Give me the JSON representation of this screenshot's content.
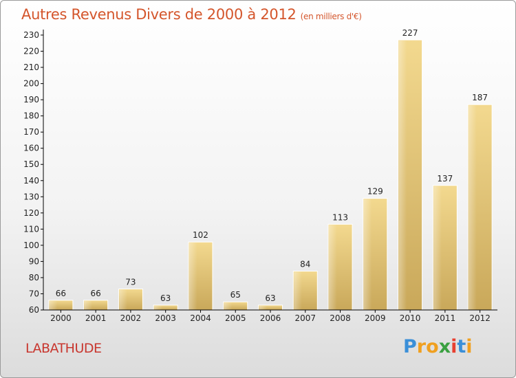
{
  "title": "Autres Revenus Divers de 2000 à 2012",
  "subtitle": "(en milliers d'€)",
  "commune": "LABATHUDE",
  "logo": {
    "letters": [
      "P",
      "r",
      "o",
      "x",
      "i",
      "t",
      "i"
    ],
    "colors": [
      "#3a8fd8",
      "#f0a020",
      "#f0a020",
      "#3aa040",
      "#e84030",
      "#3a8fd8",
      "#f0a020"
    ]
  },
  "colors": {
    "bar": "#e6c676",
    "axis": "#000000",
    "grid": "#e8e8e8"
  },
  "chart_data": {
    "type": "bar",
    "categories": [
      "2000",
      "2001",
      "2002",
      "2003",
      "2004",
      "2005",
      "2006",
      "2007",
      "2008",
      "2009",
      "2010",
      "2011",
      "2012"
    ],
    "values": [
      66,
      66,
      73,
      63,
      102,
      65,
      63,
      84,
      113,
      129,
      227,
      137,
      187
    ],
    "title": "Autres Revenus Divers de 2000 à 2012",
    "subtitle": "(en milliers d'€)",
    "xlabel": "",
    "ylabel": "",
    "ylim": [
      60,
      230
    ],
    "yticks": [
      60,
      70,
      80,
      90,
      100,
      110,
      120,
      130,
      140,
      150,
      160,
      170,
      180,
      190,
      200,
      210,
      220,
      230
    ],
    "grid": false,
    "legend": "none"
  }
}
